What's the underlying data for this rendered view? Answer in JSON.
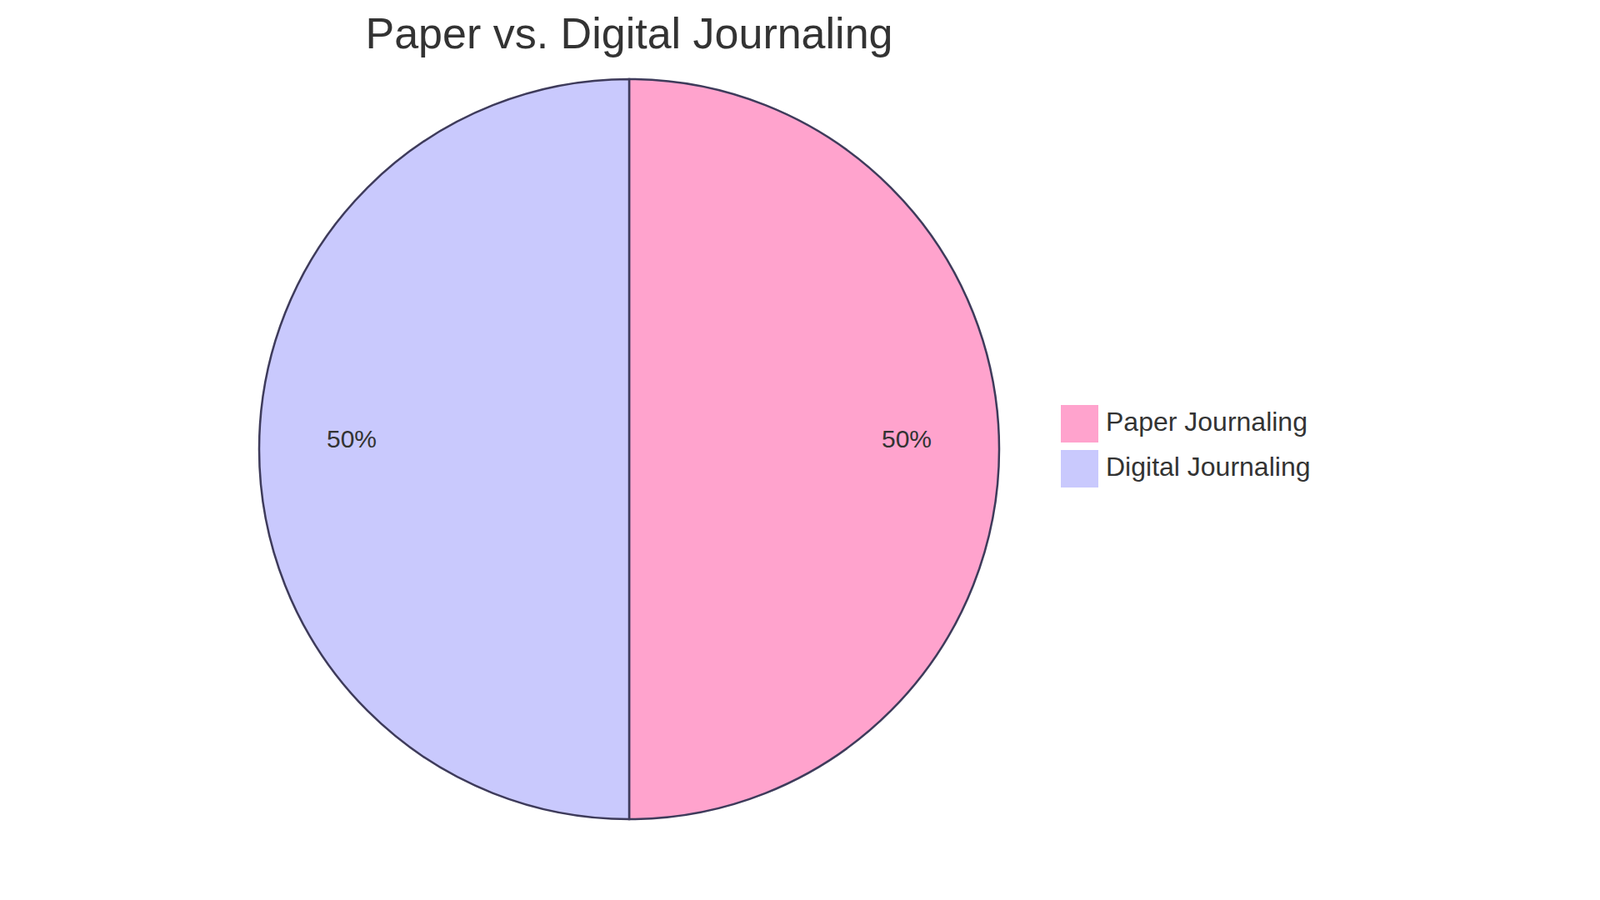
{
  "chart_data": {
    "type": "pie",
    "title": "Paper vs. Digital Journaling",
    "categories": [
      "Paper Journaling",
      "Digital Journaling"
    ],
    "values": [
      50,
      50
    ],
    "value_labels": [
      "50%",
      "50%"
    ],
    "colors": [
      "#ffa3cd",
      "#c9c9fd"
    ],
    "data_labels": true,
    "legend": "right"
  }
}
